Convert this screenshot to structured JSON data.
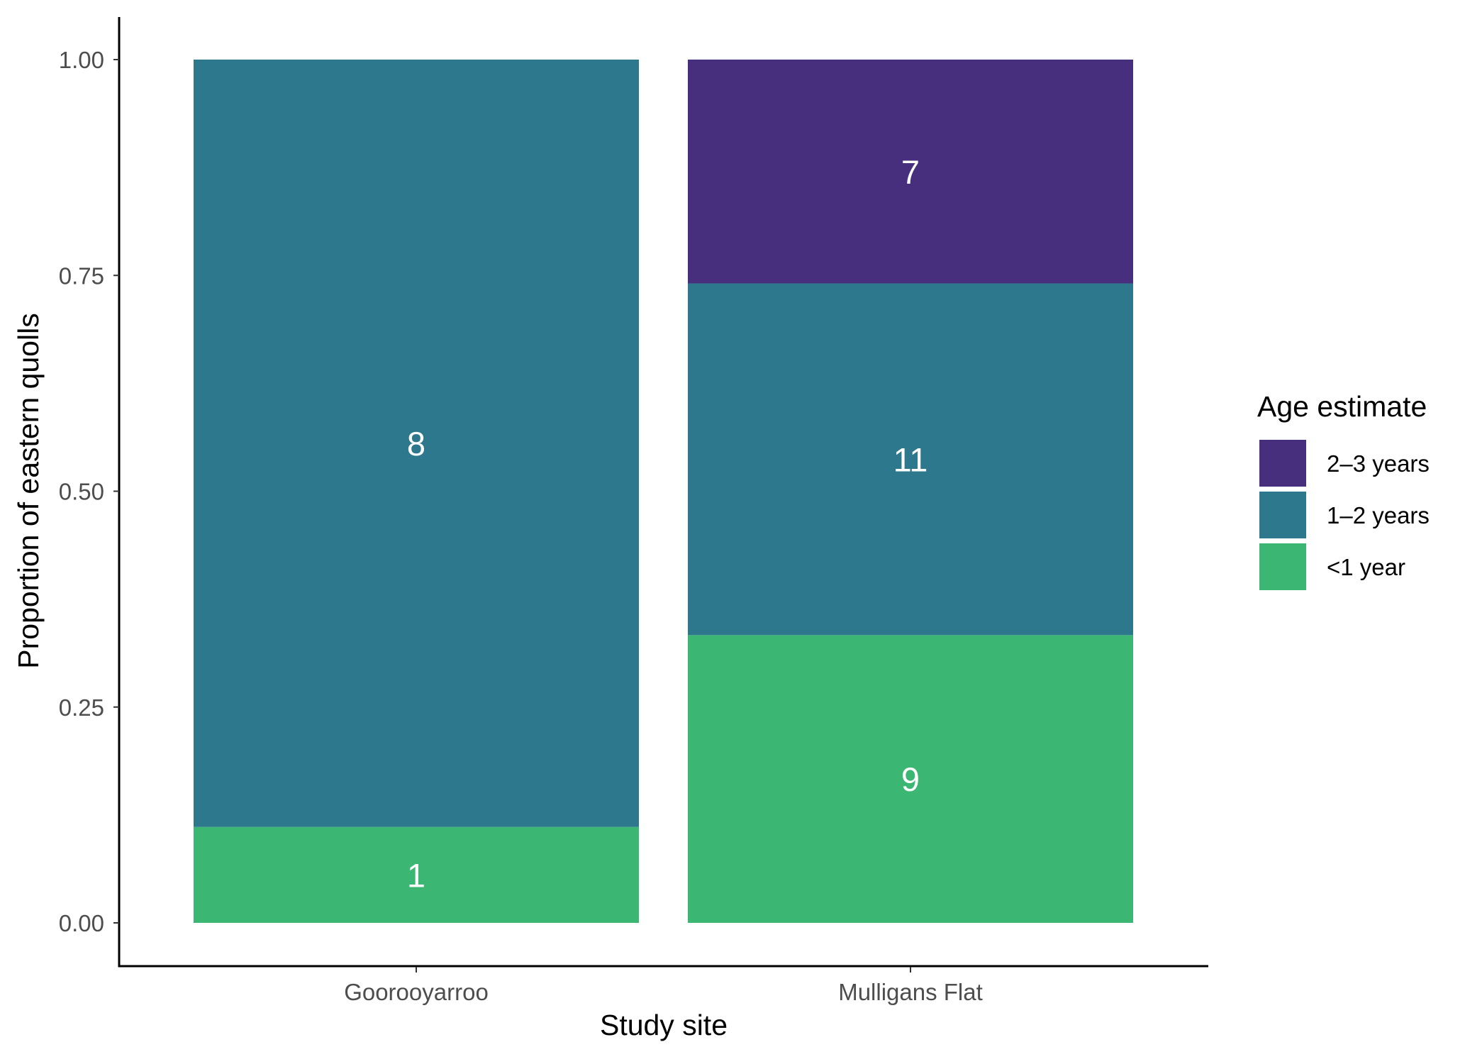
{
  "chart_data": {
    "type": "bar",
    "stacked": true,
    "normalized": true,
    "categories": [
      "Goorooyarroo",
      "Mulligans Flat"
    ],
    "series": [
      {
        "name": "<1 year",
        "values": [
          1,
          9
        ],
        "color": "#3BB673"
      },
      {
        "name": "1–2 years",
        "values": [
          8,
          11
        ],
        "color": "#2E788E"
      },
      {
        "name": "2–3 years",
        "values": [
          0,
          7
        ],
        "color": "#482F7D"
      }
    ],
    "xlabel": "Study site",
    "ylabel": "Proportion of eastern quolls",
    "ylim": [
      0,
      1
    ],
    "yticks": [
      "0.00",
      "0.25",
      "0.50",
      "0.75",
      "1.00"
    ],
    "grid": false,
    "legend": {
      "title": "Age estimate",
      "position": "right",
      "order": [
        "2–3 years",
        "1–2 years",
        "<1 year"
      ]
    }
  }
}
